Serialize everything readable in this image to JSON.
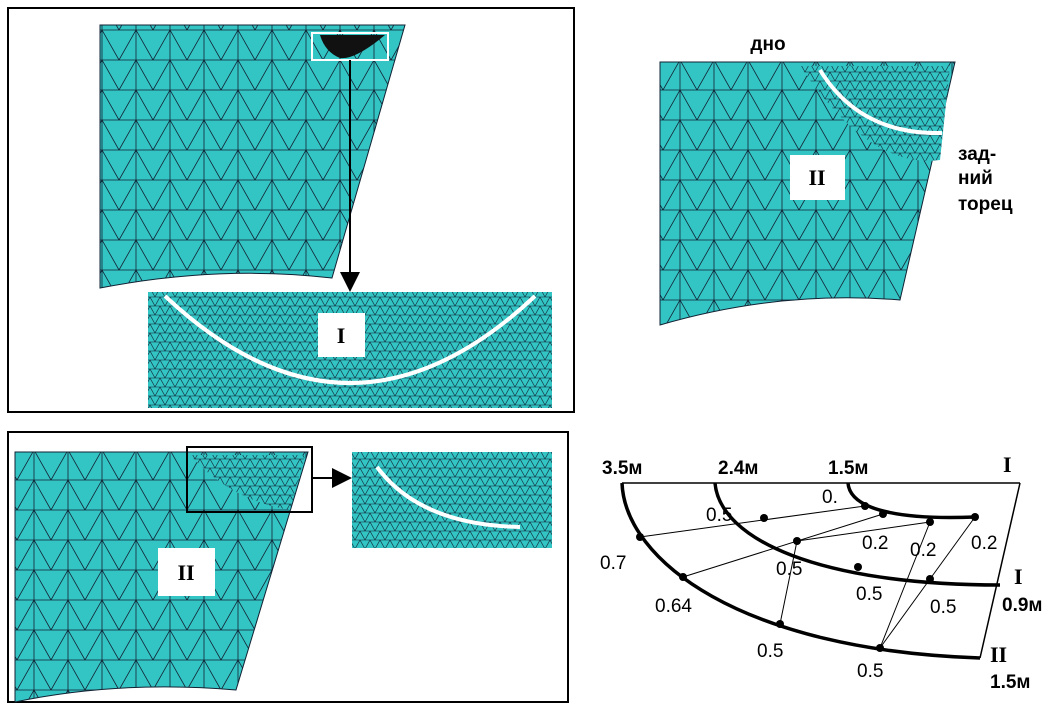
{
  "mesh_panel_top_left": {
    "zoom_label": "I"
  },
  "mesh_panel_top_right": {
    "top_caption": "дно",
    "side_caption": [
      "зад-",
      "ний",
      "торец"
    ],
    "zoom_label": "II"
  },
  "mesh_panel_bottom_left": {
    "zoom_label": "II"
  },
  "diagram": {
    "arc_labels": [
      "3.5м",
      "2.4м",
      "1.5м"
    ],
    "top_section": "I",
    "values": [
      "0.5",
      "0.",
      "0.2",
      "0.2",
      "0.2",
      "0.5",
      "0.7",
      "0.64",
      "0.5",
      "0.5",
      "0.5",
      "0.5"
    ],
    "side_sections": [
      {
        "mark": "I",
        "depth": "0.9м"
      },
      {
        "mark": "II",
        "depth": "1.5м"
      }
    ]
  }
}
